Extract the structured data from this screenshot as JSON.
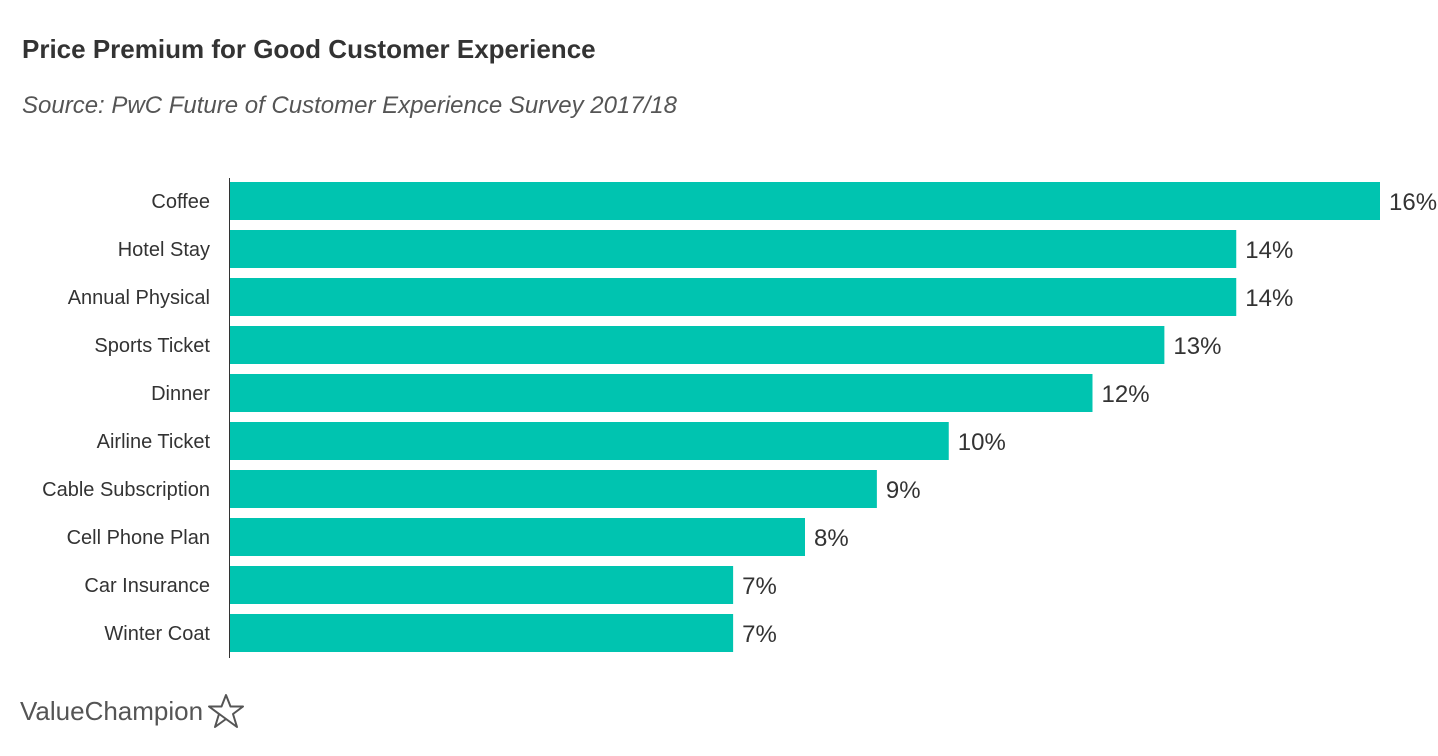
{
  "title": "Price Premium for Good Customer Experience",
  "subtitle": "Source: PwC Future of Customer Experience Survey 2017/18",
  "logo_text": "ValueChampion",
  "chart_data": {
    "type": "bar",
    "orientation": "horizontal",
    "title": "Price Premium for Good Customer Experience",
    "subtitle": "Source: PwC Future of Customer Experience Survey 2017/18",
    "categories": [
      "Coffee",
      "Hotel Stay",
      "Annual Physical",
      "Sports Ticket",
      "Dinner",
      "Airline Ticket",
      "Cable Subscription",
      "Cell Phone Plan",
      "Car Insurance",
      "Winter Coat"
    ],
    "values": [
      16,
      14,
      14,
      13,
      12,
      10,
      9,
      8,
      7,
      7
    ],
    "labels": [
      "16%",
      "14%",
      "14%",
      "13%",
      "12%",
      "10%",
      "9%",
      "8%",
      "7%",
      "7%"
    ],
    "unit": "%",
    "xlim": [
      0,
      16
    ],
    "grid": false,
    "bar_color": "#00C4B0"
  }
}
